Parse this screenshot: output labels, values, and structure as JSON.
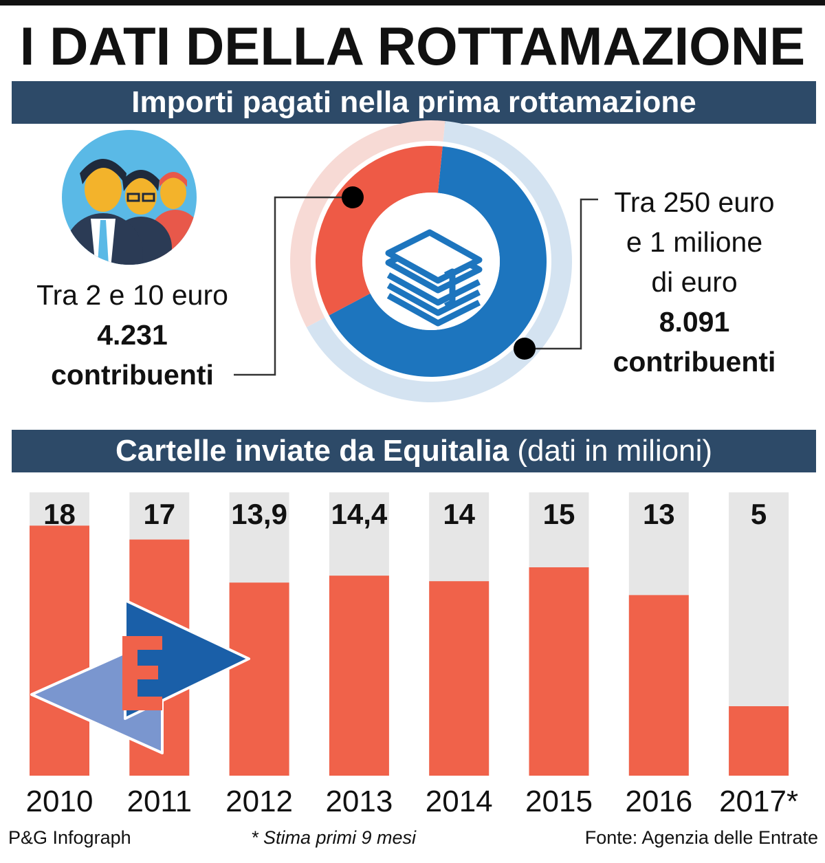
{
  "title": "I DATI DELLA ROTTAMAZIONE",
  "section1": {
    "heading": "Importi pagati nella prima rottamazione",
    "left": {
      "range": "Tra 2 e 10 euro",
      "count": "4.231",
      "unit": "contribuenti"
    },
    "right": {
      "range_line1": "Tra 250 euro",
      "range_line2": "e 1 milione",
      "range_line3": "di euro",
      "count": "8.091",
      "unit": "contribuenti"
    }
  },
  "section2": {
    "heading_bold": "Cartelle inviate da Equitalia",
    "heading_light": "(dati in milioni)"
  },
  "colors": {
    "band": "#2d4a68",
    "bar": "#f0624a",
    "bar_track": "#e6e6e6",
    "donut_blue": "#1d75be",
    "donut_red": "#ee5a46"
  },
  "chart_data": [
    {
      "type": "pie",
      "categories": [
        "Tra 2 e 10 euro",
        "Tra 250 euro e 1 milione di euro"
      ],
      "values": [
        4231,
        8091
      ]
    },
    {
      "type": "bar",
      "categories": [
        "2010",
        "2011",
        "2012",
        "2013",
        "2014",
        "2015",
        "2016",
        "2017*"
      ],
      "values": [
        18,
        17,
        13.9,
        14.4,
        14,
        15,
        13,
        5
      ],
      "value_labels": [
        "18",
        "17",
        "13,9",
        "14,4",
        "14",
        "15",
        "13",
        "5"
      ]
    }
  ],
  "footer": {
    "left": "P&G Infograph",
    "note": "* Stima primi 9 mesi",
    "source": "Fonte: Agenzia delle Entrate"
  }
}
